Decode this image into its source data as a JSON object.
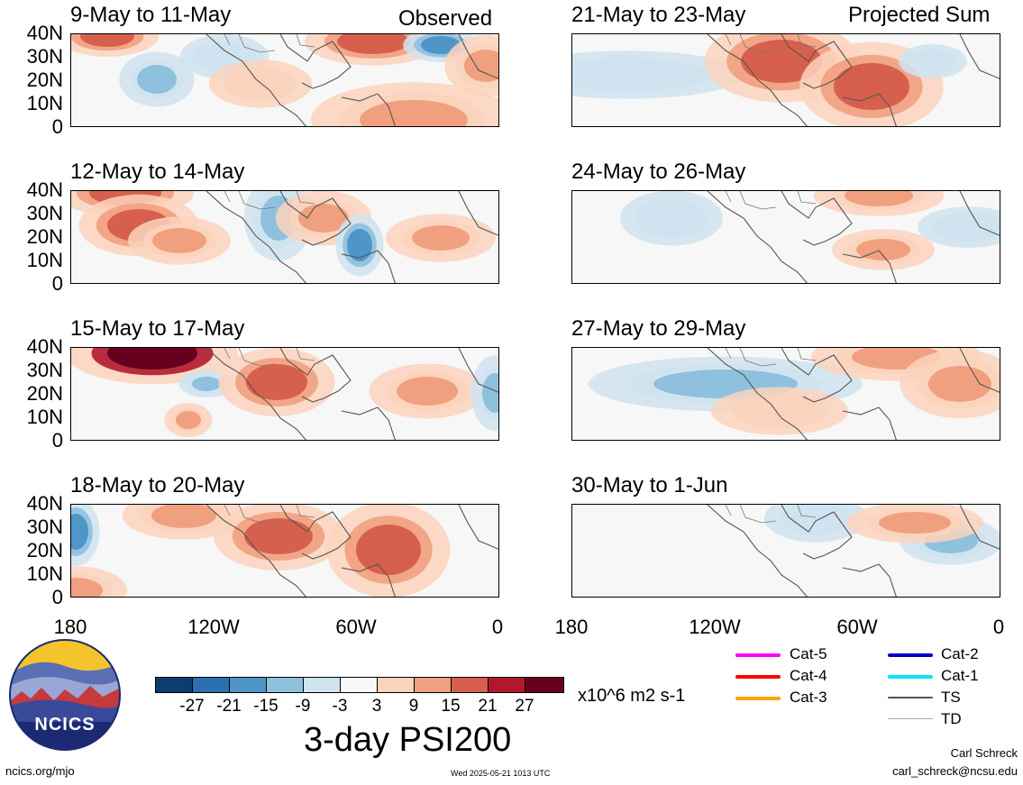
{
  "map": {
    "observed_label": "Observed",
    "projected_label": "Projected Sum",
    "y_ticks": [
      "40N",
      "30N",
      "20N",
      "10N",
      "0"
    ],
    "x_ticks": [
      "180",
      "120W",
      "60W",
      "0"
    ],
    "observed_panels": [
      {
        "title": "9-May to 11-May"
      },
      {
        "title": "12-May to 14-May"
      },
      {
        "title": "15-May to 17-May"
      },
      {
        "title": "18-May to 20-May"
      }
    ],
    "projected_panels": [
      {
        "title": "21-May to 23-May"
      },
      {
        "title": "24-May to 26-May"
      },
      {
        "title": "27-May to 29-May"
      },
      {
        "title": "30-May to 1-Jun"
      }
    ]
  },
  "colorbar": {
    "labels": [
      "-27",
      "-21",
      "-15",
      "-9",
      "-3",
      "3",
      "9",
      "15",
      "21",
      "27"
    ],
    "colors": [
      "#0b3d6e",
      "#2b6fb3",
      "#4e95c8",
      "#8fc0de",
      "#cfe3f0",
      "#f7f7f7",
      "#fbd3bd",
      "#f1a07f",
      "#d6604d",
      "#b2182b",
      "#67001f"
    ],
    "units": "x10^6 m2 s-1",
    "title": "3-day PSI200"
  },
  "storm_legend": [
    {
      "label": "Cat-5",
      "color": "#ff00ff"
    },
    {
      "label": "Cat-4",
      "color": "#ff0000"
    },
    {
      "label": "Cat-3",
      "color": "#ffa500"
    },
    {
      "label": "Cat-2",
      "color": "#0000cc"
    },
    {
      "label": "Cat-1",
      "color": "#00e5ff"
    },
    {
      "label": "TS",
      "color": "#555555"
    },
    {
      "label": "TD",
      "color": "#aaaaaa"
    }
  ],
  "logo": {
    "text": "NCICS"
  },
  "footer": {
    "website": "ncics.org/mjo",
    "timestamp": "Wed 2025-05-21 1013 UTC",
    "author": "Carl Schreck",
    "email": "carl_schreck@ncsu.edu"
  }
}
